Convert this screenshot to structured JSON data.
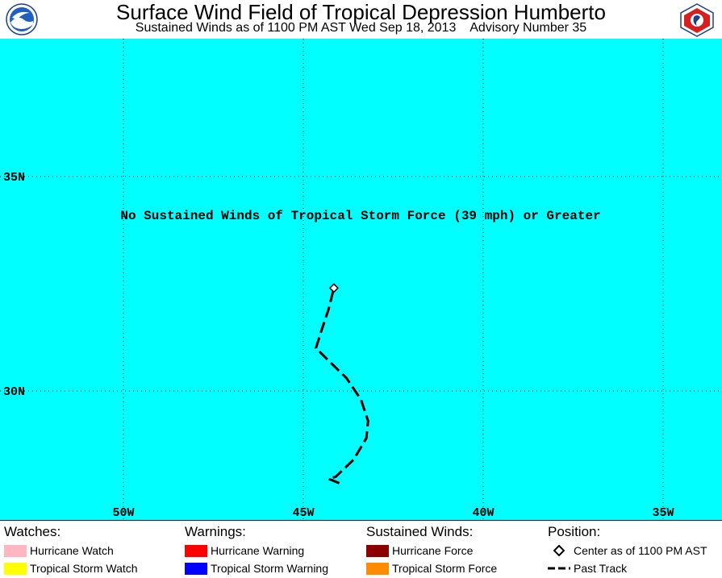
{
  "header": {
    "title": "Surface Wind Field of Tropical Depression Humberto",
    "subtitle": "Sustained Winds as of 1100 PM AST Wed Sep 18, 2013    Advisory Number 35"
  },
  "map": {
    "ocean_color": "#00FFFF",
    "message": "No Sustained Winds of Tropical Storm Force (39 mph) or Greater",
    "lat_labels": [
      {
        "lat": 35,
        "label": "35N"
      },
      {
        "lat": 30,
        "label": "30N"
      }
    ],
    "lon_labels": [
      {
        "lon": 50,
        "label": "50W"
      },
      {
        "lon": 45,
        "label": "45W"
      },
      {
        "lon": 40,
        "label": "40W"
      },
      {
        "lon": 35,
        "label": "35W"
      }
    ],
    "track": [
      {
        "lon": 44.0,
        "lat": 27.85
      },
      {
        "lon": 44.2,
        "lat": 27.92
      },
      {
        "lon": 44.3,
        "lat": 27.95
      },
      {
        "lon": 44.1,
        "lat": 28.0
      },
      {
        "lon": 43.6,
        "lat": 28.4
      },
      {
        "lon": 43.25,
        "lat": 28.9
      },
      {
        "lon": 43.2,
        "lat": 29.3
      },
      {
        "lon": 43.4,
        "lat": 29.8
      },
      {
        "lon": 43.8,
        "lat": 30.3
      },
      {
        "lon": 44.35,
        "lat": 30.75
      },
      {
        "lon": 44.65,
        "lat": 31.0
      },
      {
        "lon": 44.5,
        "lat": 31.4
      },
      {
        "lon": 44.3,
        "lat": 31.9
      },
      {
        "lon": 44.15,
        "lat": 32.4
      }
    ],
    "center": {
      "lon": 44.15,
      "lat": 32.4
    }
  },
  "legend": {
    "watches": {
      "heading": "Watches:",
      "items": [
        {
          "label": "Hurricane Watch",
          "color": "#FFB6C1"
        },
        {
          "label": "Tropical Storm Watch",
          "color": "#FFFF00"
        }
      ]
    },
    "warnings": {
      "heading": "Warnings:",
      "items": [
        {
          "label": "Hurricane Warning",
          "color": "#FF0000"
        },
        {
          "label": "Tropical Storm Warning",
          "color": "#0000FF"
        }
      ]
    },
    "winds": {
      "heading": "Sustained Winds:",
      "items": [
        {
          "label": "Hurricane Force",
          "color": "#8B0000"
        },
        {
          "label": "Tropical Storm Force",
          "color": "#FF8C00"
        }
      ]
    },
    "position": {
      "heading": "Position:",
      "center_label": "Center as of 1100 PM AST",
      "track_label": "Past Track"
    }
  }
}
